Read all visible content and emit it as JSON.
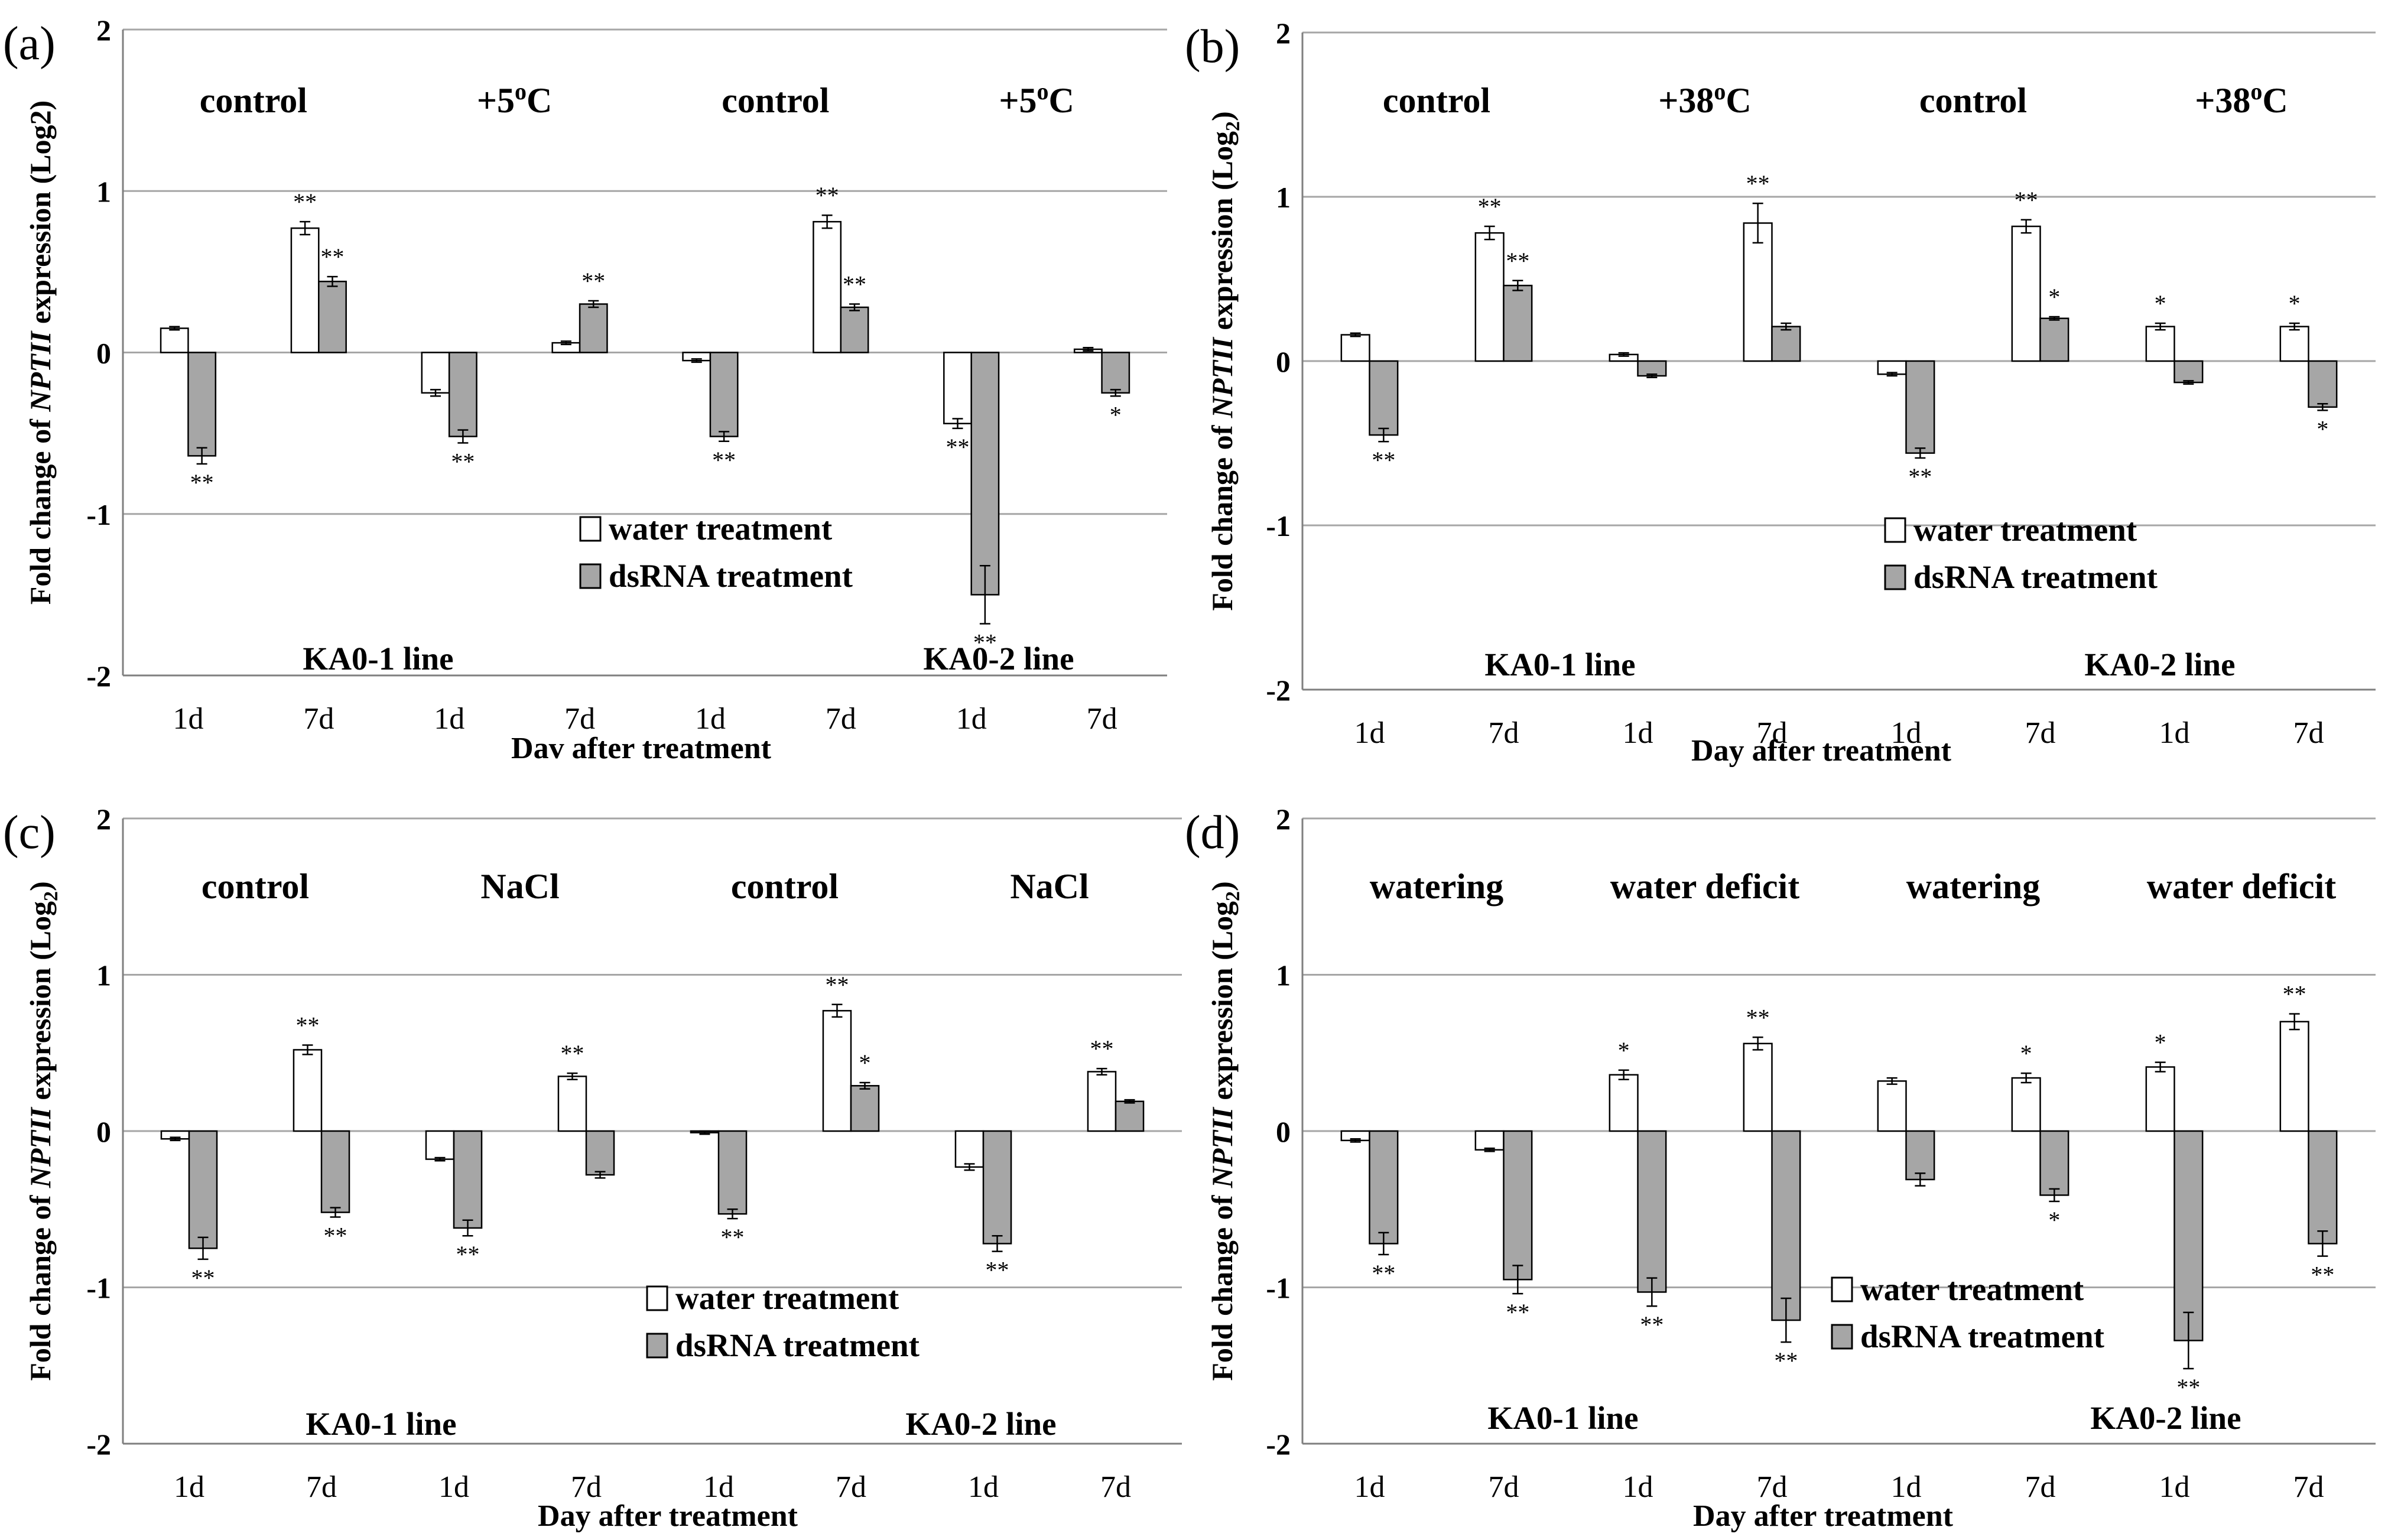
{
  "legend": {
    "water": "water treatment",
    "dsrna": "dsRNA treatment"
  },
  "colors": {
    "water": "#ffffff",
    "dsrna": "#a6a6a6",
    "grid": "#a6a6a6"
  },
  "chart_data": [
    {
      "panel": "(a)",
      "type": "bar",
      "ylabel": "Fold change of NPTII expression (Log2)",
      "ylabel_parts": [
        "Fold change of ",
        "NPTII",
        " expression (Log2)"
      ],
      "ylabel_sub": "",
      "xlabel": "Dav after treatment",
      "ylim": [
        -2,
        2
      ],
      "yticks": [
        "2",
        "1",
        "0",
        "-1",
        "-2"
      ],
      "groups": [
        "control",
        "+5°C",
        "control",
        "+5°C"
      ],
      "lines": [
        "KA0-1 line",
        "KA0-2 line"
      ],
      "categories": [
        "1d",
        "7d",
        "1d",
        "7d",
        "1d",
        "7d",
        "1d",
        "7d"
      ],
      "series": [
        {
          "name": "water treatment",
          "values": [
            0.15,
            0.77,
            -0.25,
            0.06,
            -0.05,
            0.81,
            -0.44,
            0.02
          ],
          "err": [
            0.01,
            0.04,
            0.02,
            0.01,
            0.01,
            0.04,
            0.03,
            0.01
          ],
          "sig": [
            "",
            "**",
            "",
            "",
            "",
            "**",
            "**",
            ""
          ]
        },
        {
          "name": "dsRNA treatment",
          "values": [
            -0.64,
            0.44,
            -0.52,
            0.3,
            -0.52,
            0.28,
            -1.5,
            -0.25
          ],
          "err": [
            0.05,
            0.03,
            0.04,
            0.02,
            0.03,
            0.02,
            0.18,
            0.02
          ],
          "sig": [
            "**",
            "**",
            "**",
            "**",
            "**",
            "**",
            "**",
            "*"
          ]
        }
      ]
    },
    {
      "panel": "(b)",
      "type": "bar",
      "ylabel": "Fold change of NPTII expression (Log2)",
      "ylabel_parts": [
        "Fold change of ",
        "NPTII",
        " expression (Log"
      ],
      "ylabel_sub": "2",
      "xlabel": "Day after treatment",
      "ylim": [
        -2,
        2
      ],
      "yticks": [
        "2",
        "1",
        "0",
        "-1",
        "-2"
      ],
      "groups": [
        "control",
        "+38°C",
        "control",
        "+38°C"
      ],
      "lines": [
        "KA0-1 line",
        "KA0-2  line"
      ],
      "categories": [
        "1d",
        "7d",
        "1d",
        "7d",
        "1d",
        "7d",
        "1d",
        "7d"
      ],
      "series": [
        {
          "name": "water treatment",
          "values": [
            0.16,
            0.78,
            0.04,
            0.84,
            -0.08,
            0.82,
            0.21,
            0.21
          ],
          "err": [
            0.01,
            0.04,
            0.01,
            0.12,
            0.01,
            0.04,
            0.02,
            0.02
          ],
          "sig": [
            "",
            "**",
            "",
            "**",
            "",
            "**",
            "*",
            "*"
          ]
        },
        {
          "name": "dsRNA treatment",
          "values": [
            -0.45,
            0.46,
            -0.09,
            0.21,
            -0.56,
            0.26,
            -0.13,
            -0.28
          ],
          "err": [
            0.04,
            0.03,
            0.01,
            0.02,
            0.03,
            0.01,
            0.01,
            0.02
          ],
          "sig": [
            "**",
            "**",
            "",
            "",
            "**",
            "*",
            "",
            "*"
          ]
        }
      ]
    },
    {
      "panel": "(c)",
      "type": "bar",
      "ylabel": "Fold change of NPTII expression (Log2)",
      "ylabel_parts": [
        "Fold change of ",
        "NPTII",
        " expression (Log"
      ],
      "ylabel_sub": "2",
      "xlabel": "Day after treatment",
      "ylim": [
        -2,
        2
      ],
      "yticks": [
        "2",
        "1",
        "0",
        "-1",
        "-2"
      ],
      "groups": [
        "control",
        "NaCl",
        "control",
        "NaCl"
      ],
      "lines": [
        "KA0-1 line",
        "KA0-2  line"
      ],
      "categories": [
        "1d",
        "7d",
        "1d",
        "7d",
        "1d",
        "7d",
        "1d",
        "7d"
      ],
      "series": [
        {
          "name": "water treatment",
          "values": [
            -0.05,
            0.52,
            -0.18,
            0.35,
            -0.01,
            0.77,
            -0.23,
            0.38
          ],
          "err": [
            0.01,
            0.03,
            0.01,
            0.02,
            0.01,
            0.04,
            0.02,
            0.02
          ],
          "sig": [
            "",
            "**",
            "",
            "**",
            "",
            "**",
            "",
            "**"
          ]
        },
        {
          "name": "dsRNA treatment",
          "values": [
            -0.75,
            -0.52,
            -0.62,
            -0.28,
            -0.53,
            0.29,
            -0.72,
            0.19
          ],
          "err": [
            0.07,
            0.03,
            0.05,
            0.02,
            0.03,
            0.02,
            0.05,
            0.01
          ],
          "sig": [
            "**",
            "**",
            "**",
            "",
            "**",
            "*",
            "**",
            ""
          ]
        }
      ]
    },
    {
      "panel": "(d)",
      "type": "bar",
      "ylabel": "Fold change of NPTII expression (Log2)",
      "ylabel_parts": [
        "Fold change of ",
        "NPTII",
        " expression (Log"
      ],
      "ylabel_sub": "2",
      "xlabel": "Day after treatment",
      "ylim": [
        -2,
        2
      ],
      "yticks": [
        "2",
        "1",
        "0",
        "-1",
        "-2"
      ],
      "groups": [
        "watering",
        "water deficit",
        "watering",
        "water deficit"
      ],
      "lines": [
        "KA0-1 line",
        "KA0-2  line"
      ],
      "categories": [
        "1d",
        "7d",
        "1d",
        "7d",
        "1d",
        "7d",
        "1d",
        "7d"
      ],
      "series": [
        {
          "name": "water treatment",
          "values": [
            -0.06,
            -0.12,
            0.36,
            0.56,
            0.32,
            0.34,
            0.41,
            0.7
          ],
          "err": [
            0.01,
            0.01,
            0.03,
            0.04,
            0.02,
            0.03,
            0.03,
            0.05
          ],
          "sig": [
            "",
            "",
            "*",
            "**",
            "",
            "*",
            "*",
            "**"
          ]
        },
        {
          "name": "dsRNA treatment",
          "values": [
            -0.72,
            -0.95,
            -1.03,
            -1.21,
            -0.31,
            -0.41,
            -1.34,
            -0.72
          ],
          "err": [
            0.07,
            0.09,
            0.09,
            0.14,
            0.04,
            0.04,
            0.18,
            0.08
          ],
          "sig": [
            "**",
            "**",
            "**",
            "**",
            "",
            "*",
            "**",
            "**"
          ]
        }
      ]
    }
  ]
}
